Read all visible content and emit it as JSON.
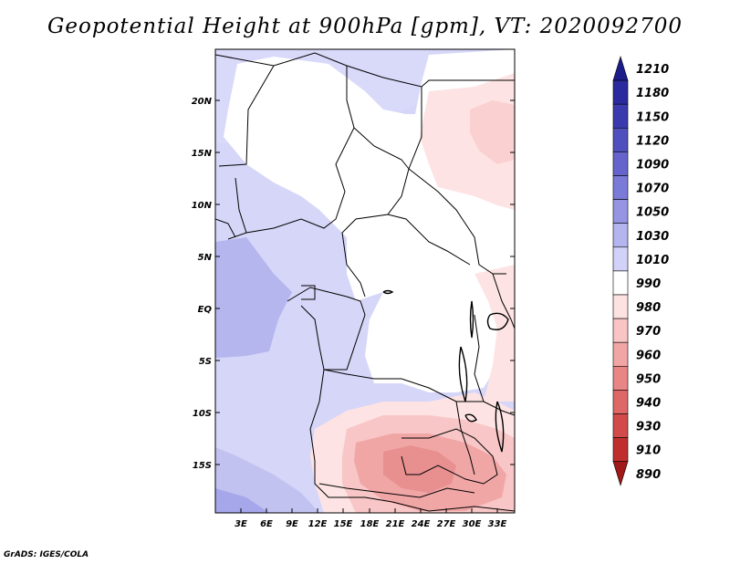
{
  "title": "Geopotential Height at 900hPa [gpm], VT: 2020092700",
  "footer": "GrADS: IGES/COLA",
  "map": {
    "lat_labels": [
      "20N",
      "15N",
      "10N",
      "5N",
      "EQ",
      "5S",
      "10S",
      "15S"
    ],
    "lon_labels": [
      "3E",
      "6E",
      "9E",
      "12E",
      "15E",
      "18E",
      "21E",
      "24E",
      "27E",
      "30E",
      "33E"
    ]
  },
  "colorbar": {
    "levels": [
      1210,
      1180,
      1150,
      1120,
      1090,
      1070,
      1050,
      1030,
      1010,
      990,
      980,
      970,
      960,
      950,
      940,
      930,
      910,
      890
    ],
    "colors": [
      "#1c1c8a",
      "#2a2a9e",
      "#3a3aae",
      "#4f4fbe",
      "#6464cc",
      "#7a7ad8",
      "#9595e3",
      "#b4b4ee",
      "#d2d2f8",
      "#ffffff",
      "#fde2e2",
      "#f8c4c4",
      "#f1a5a5",
      "#e88686",
      "#de6767",
      "#d34a4a",
      "#c02e2e",
      "#a01818"
    ]
  }
}
